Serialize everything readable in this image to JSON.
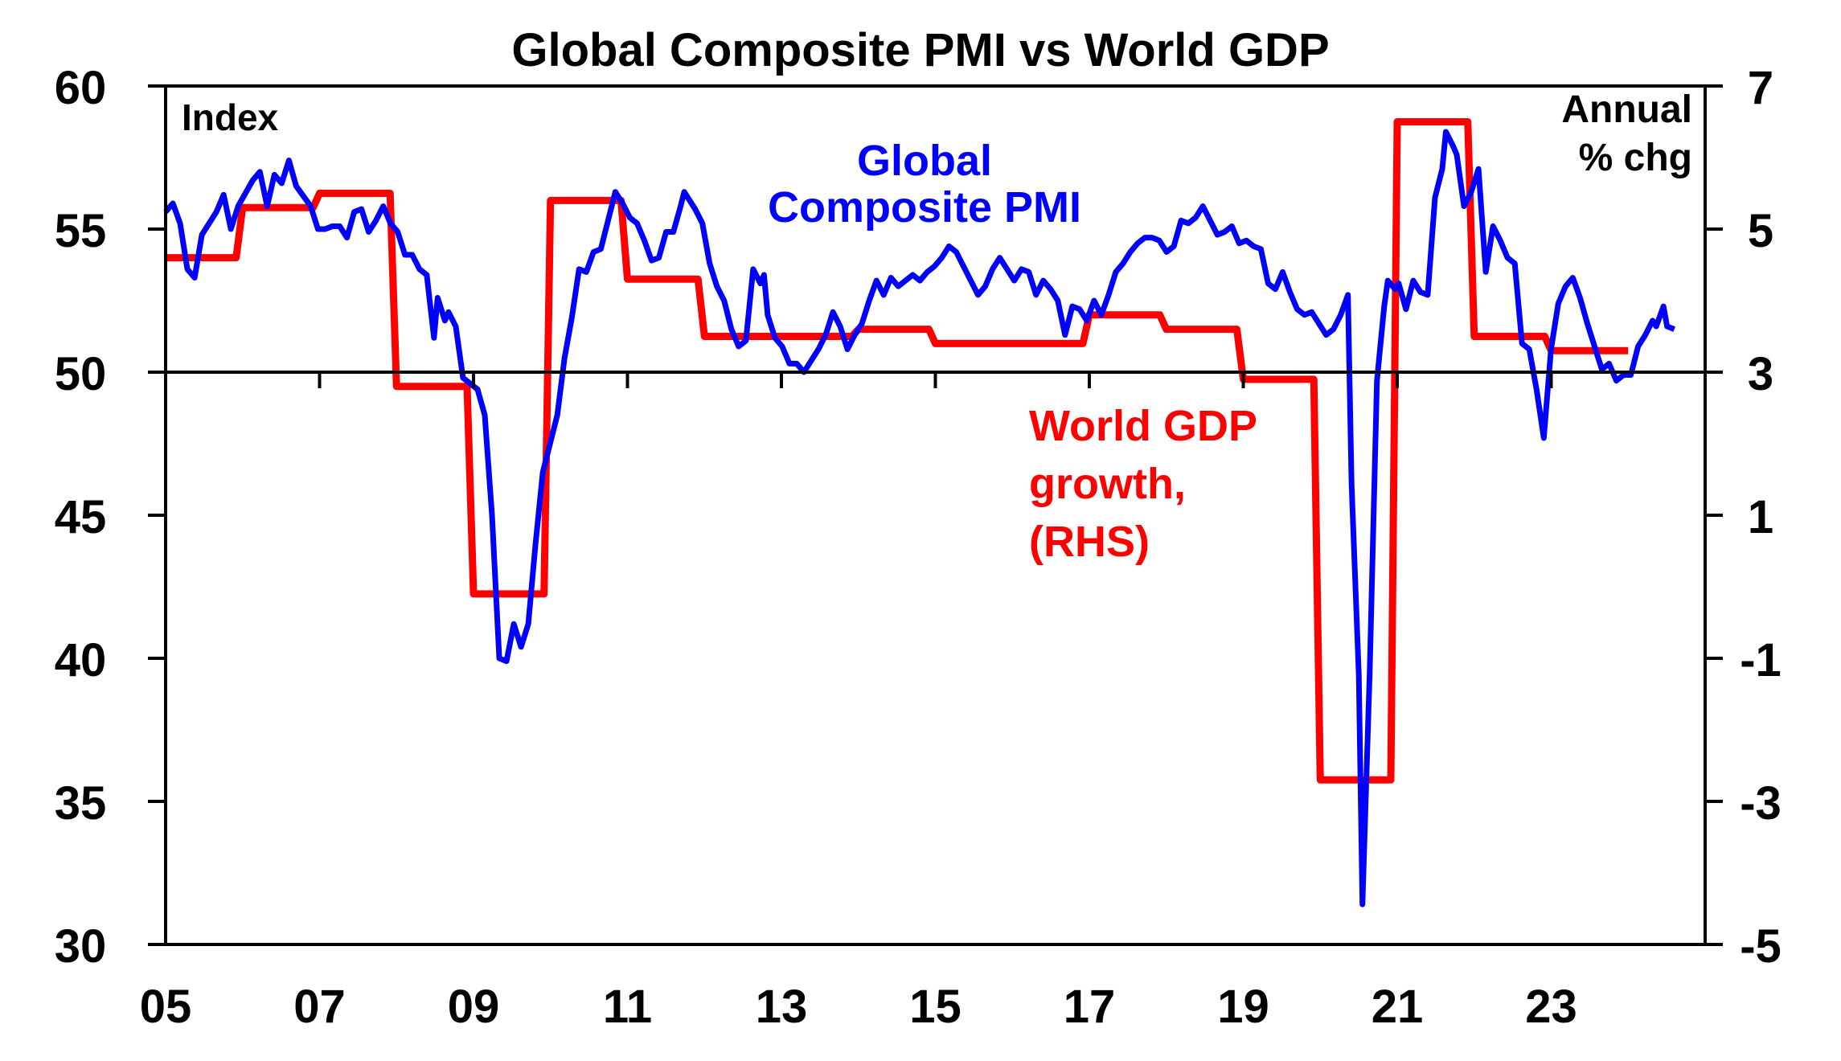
{
  "chart_data": {
    "type": "line",
    "title": "Global Composite PMI vs World GDP",
    "left_axis": {
      "label": "Index",
      "ylim": [
        30,
        60
      ],
      "ticks": [
        "60",
        "55",
        "50",
        "45",
        "40",
        "35",
        "30"
      ],
      "tick_values": [
        60,
        55,
        50,
        45,
        40,
        35,
        30
      ]
    },
    "right_axis": {
      "label_line1": "Annual",
      "label_line2": "% chg",
      "ylim": [
        -5,
        7
      ],
      "ticks": [
        "7",
        "5",
        "3",
        "1",
        "-1",
        "-3",
        "-5"
      ],
      "tick_values": [
        7,
        5,
        3,
        1,
        -1,
        -3,
        -5
      ]
    },
    "x_axis": {
      "xlim": [
        2005,
        2025
      ],
      "ticks": [
        "05",
        "07",
        "09",
        "11",
        "13",
        "15",
        "17",
        "19",
        "21",
        "23"
      ],
      "tick_values": [
        2005,
        2007,
        2009,
        2011,
        2013,
        2015,
        2017,
        2019,
        2021,
        2023
      ]
    },
    "reference_line": 50,
    "series": [
      {
        "name": "Global Composite PMI",
        "label_line1": "Global",
        "label_line2": "Composite PMI",
        "axis": "left",
        "color": "#0000FF",
        "points": [
          [
            2005.0,
            55.6
          ],
          [
            2005.1,
            55.9
          ],
          [
            2005.2,
            55.2
          ],
          [
            2005.3,
            53.6
          ],
          [
            2005.4,
            53.3
          ],
          [
            2005.5,
            54.8
          ],
          [
            2005.7,
            55.6
          ],
          [
            2005.8,
            56.2
          ],
          [
            2005.9,
            55.0
          ],
          [
            2006.0,
            55.8
          ],
          [
            2006.2,
            56.7
          ],
          [
            2006.3,
            57.0
          ],
          [
            2006.4,
            55.8
          ],
          [
            2006.5,
            56.9
          ],
          [
            2006.6,
            56.6
          ],
          [
            2006.7,
            57.4
          ],
          [
            2006.8,
            56.5
          ],
          [
            2007.0,
            55.8
          ],
          [
            2007.1,
            55.0
          ],
          [
            2007.2,
            55.0
          ],
          [
            2007.3,
            55.1
          ],
          [
            2007.4,
            55.1
          ],
          [
            2007.5,
            54.7
          ],
          [
            2007.6,
            55.6
          ],
          [
            2007.7,
            55.7
          ],
          [
            2007.8,
            54.9
          ],
          [
            2007.9,
            55.3
          ],
          [
            2008.0,
            55.8
          ],
          [
            2008.1,
            55.2
          ],
          [
            2008.2,
            54.9
          ],
          [
            2008.3,
            54.1
          ],
          [
            2008.4,
            54.1
          ],
          [
            2008.5,
            53.6
          ],
          [
            2008.6,
            53.4
          ],
          [
            2008.7,
            51.2
          ],
          [
            2008.75,
            52.6
          ],
          [
            2008.85,
            51.8
          ],
          [
            2008.9,
            52.1
          ],
          [
            2009.0,
            51.6
          ],
          [
            2009.1,
            49.8
          ],
          [
            2009.3,
            49.4
          ],
          [
            2009.4,
            48.5
          ],
          [
            2009.5,
            45.0
          ],
          [
            2009.6,
            40.0
          ],
          [
            2009.7,
            39.9
          ],
          [
            2009.8,
            41.2
          ],
          [
            2009.9,
            40.4
          ],
          [
            2010.0,
            41.2
          ],
          [
            2010.1,
            44.0
          ],
          [
            2010.2,
            46.5
          ],
          [
            2010.4,
            48.5
          ],
          [
            2010.5,
            50.5
          ],
          [
            2010.6,
            51.9
          ],
          [
            2010.7,
            53.6
          ],
          [
            2010.8,
            53.5
          ],
          [
            2010.9,
            54.2
          ],
          [
            2011.0,
            54.3
          ],
          [
            2011.1,
            55.3
          ],
          [
            2011.2,
            56.3
          ],
          [
            2011.3,
            55.9
          ],
          [
            2011.4,
            55.4
          ],
          [
            2011.5,
            55.2
          ],
          [
            2011.6,
            54.6
          ],
          [
            2011.7,
            53.9
          ],
          [
            2011.8,
            54.0
          ],
          [
            2011.9,
            54.9
          ],
          [
            2012.0,
            54.9
          ],
          [
            2012.1,
            55.8
          ],
          [
            2012.15,
            56.3
          ],
          [
            2012.3,
            55.7
          ],
          [
            2012.4,
            55.2
          ],
          [
            2012.5,
            53.8
          ],
          [
            2012.6,
            53.0
          ],
          [
            2012.7,
            52.5
          ],
          [
            2012.8,
            51.5
          ],
          [
            2012.9,
            50.9
          ],
          [
            2013.0,
            51.1
          ],
          [
            2013.1,
            53.6
          ],
          [
            2013.2,
            53.1
          ],
          [
            2013.25,
            53.4
          ],
          [
            2013.3,
            52.0
          ],
          [
            2013.4,
            51.2
          ],
          [
            2013.5,
            50.9
          ],
          [
            2013.6,
            50.3
          ],
          [
            2013.7,
            50.3
          ],
          [
            2013.8,
            50.0
          ],
          [
            2013.9,
            50.4
          ],
          [
            2014.0,
            50.8
          ],
          [
            2014.1,
            51.3
          ],
          [
            2014.2,
            52.1
          ],
          [
            2014.3,
            51.6
          ],
          [
            2014.4,
            50.8
          ],
          [
            2014.5,
            51.3
          ],
          [
            2014.6,
            51.7
          ],
          [
            2014.7,
            52.5
          ],
          [
            2014.8,
            53.2
          ],
          [
            2014.9,
            52.7
          ],
          [
            2015.0,
            53.3
          ],
          [
            2015.1,
            53.0
          ],
          [
            2015.2,
            53.2
          ],
          [
            2015.3,
            53.4
          ],
          [
            2015.4,
            53.2
          ],
          [
            2015.5,
            53.5
          ],
          [
            2015.6,
            53.7
          ],
          [
            2015.7,
            54.0
          ],
          [
            2015.8,
            54.4
          ],
          [
            2015.9,
            54.2
          ],
          [
            2016.0,
            53.7
          ],
          [
            2016.1,
            53.2
          ],
          [
            2016.2,
            52.7
          ],
          [
            2016.3,
            53.0
          ],
          [
            2016.4,
            53.6
          ],
          [
            2016.5,
            54.0
          ],
          [
            2016.6,
            53.6
          ],
          [
            2016.7,
            53.2
          ],
          [
            2016.8,
            53.6
          ],
          [
            2016.9,
            53.5
          ],
          [
            2017.0,
            52.7
          ],
          [
            2017.1,
            53.2
          ],
          [
            2017.2,
            52.9
          ],
          [
            2017.3,
            52.5
          ],
          [
            2017.4,
            51.3
          ],
          [
            2017.5,
            52.3
          ],
          [
            2017.6,
            52.2
          ],
          [
            2017.7,
            51.8
          ],
          [
            2017.8,
            52.5
          ],
          [
            2017.9,
            52.0
          ],
          [
            2018.0,
            52.7
          ],
          [
            2018.1,
            53.5
          ],
          [
            2018.2,
            53.8
          ],
          [
            2018.3,
            54.2
          ],
          [
            2018.4,
            54.5
          ],
          [
            2018.5,
            54.7
          ],
          [
            2018.6,
            54.7
          ],
          [
            2018.7,
            54.6
          ],
          [
            2018.8,
            54.2
          ],
          [
            2018.9,
            54.4
          ],
          [
            2019.0,
            55.3
          ],
          [
            2019.1,
            55.2
          ],
          [
            2019.2,
            55.4
          ],
          [
            2019.3,
            55.8
          ],
          [
            2019.4,
            55.3
          ],
          [
            2019.5,
            54.8
          ],
          [
            2019.6,
            54.9
          ],
          [
            2019.7,
            55.1
          ],
          [
            2019.8,
            54.5
          ],
          [
            2019.9,
            54.6
          ],
          [
            2020.0,
            54.4
          ],
          [
            2020.1,
            54.3
          ],
          [
            2020.2,
            53.1
          ],
          [
            2020.3,
            52.9
          ],
          [
            2020.4,
            53.5
          ],
          [
            2020.5,
            52.8
          ],
          [
            2020.6,
            52.2
          ],
          [
            2020.7,
            52.0
          ],
          [
            2020.8,
            52.1
          ],
          [
            2020.9,
            51.7
          ],
          [
            2021.0,
            51.3
          ],
          [
            2021.1,
            51.5
          ],
          [
            2021.2,
            52.0
          ],
          [
            2021.3,
            52.7
          ],
          [
            2021.35,
            46.1
          ],
          [
            2021.45,
            39.4
          ],
          [
            2021.5,
            31.4
          ],
          [
            2021.6,
            39.5
          ],
          [
            2021.7,
            49.7
          ],
          [
            2021.8,
            52.3
          ],
          [
            2021.85,
            53.2
          ],
          [
            2021.95,
            52.9
          ],
          [
            2022.0,
            53.1
          ],
          [
            2022.1,
            52.2
          ],
          [
            2022.2,
            53.2
          ],
          [
            2022.3,
            52.8
          ],
          [
            2022.4,
            52.7
          ],
          [
            2022.5,
            56.1
          ],
          [
            2022.6,
            57.1
          ],
          [
            2022.65,
            58.4
          ],
          [
            2022.75,
            57.9
          ],
          [
            2022.8,
            57.6
          ],
          [
            2022.9,
            55.8
          ],
          [
            2023.0,
            56.3
          ],
          [
            2023.1,
            57.1
          ],
          [
            2023.2,
            53.5
          ],
          [
            2023.3,
            55.1
          ],
          [
            2023.4,
            54.6
          ],
          [
            2023.5,
            54.0
          ],
          [
            2023.6,
            53.8
          ],
          [
            2023.7,
            51.0
          ],
          [
            2023.8,
            50.8
          ],
          [
            2023.9,
            49.4
          ],
          [
            2024.0,
            47.7
          ],
          [
            2024.1,
            50.8
          ],
          [
            2024.2,
            52.4
          ],
          [
            2024.3,
            53.0
          ],
          [
            2024.4,
            53.3
          ],
          [
            2024.5,
            52.6
          ],
          [
            2024.6,
            51.7
          ],
          [
            2024.7,
            50.9
          ],
          [
            2024.8,
            50.1
          ],
          [
            2024.9,
            50.3
          ],
          [
            2025.0,
            49.7
          ],
          [
            2025.1,
            49.9
          ],
          [
            2025.2,
            49.9
          ],
          [
            2025.3,
            50.9
          ],
          [
            2025.4,
            51.3
          ],
          [
            2025.5,
            51.8
          ],
          [
            2025.55,
            51.6
          ],
          [
            2025.65,
            52.3
          ],
          [
            2025.7,
            51.6
          ],
          [
            2025.8,
            51.5
          ]
        ]
      },
      {
        "name": "World GDP growth, (RHS)",
        "label_line1": "World GDP",
        "label_line2": "growth,",
        "label_line3": "(RHS)",
        "axis": "right",
        "color": "#FF0000",
        "steps": [
          [
            2005.0,
            4.6
          ],
          [
            2006.0,
            5.3
          ],
          [
            2007.0,
            5.5
          ],
          [
            2008.0,
            2.8
          ],
          [
            2009.0,
            -0.1
          ],
          [
            2010.0,
            5.4
          ],
          [
            2011.0,
            4.3
          ],
          [
            2012.0,
            3.5
          ],
          [
            2014.0,
            3.6
          ],
          [
            2015.0,
            3.4
          ],
          [
            2017.0,
            3.8
          ],
          [
            2018.0,
            3.6
          ],
          [
            2019.0,
            2.9
          ],
          [
            2020.0,
            -2.7
          ],
          [
            2021.0,
            6.5
          ],
          [
            2022.0,
            3.5
          ],
          [
            2023.0,
            3.3
          ],
          [
            2024.0,
            3.3
          ]
        ]
      }
    ]
  }
}
